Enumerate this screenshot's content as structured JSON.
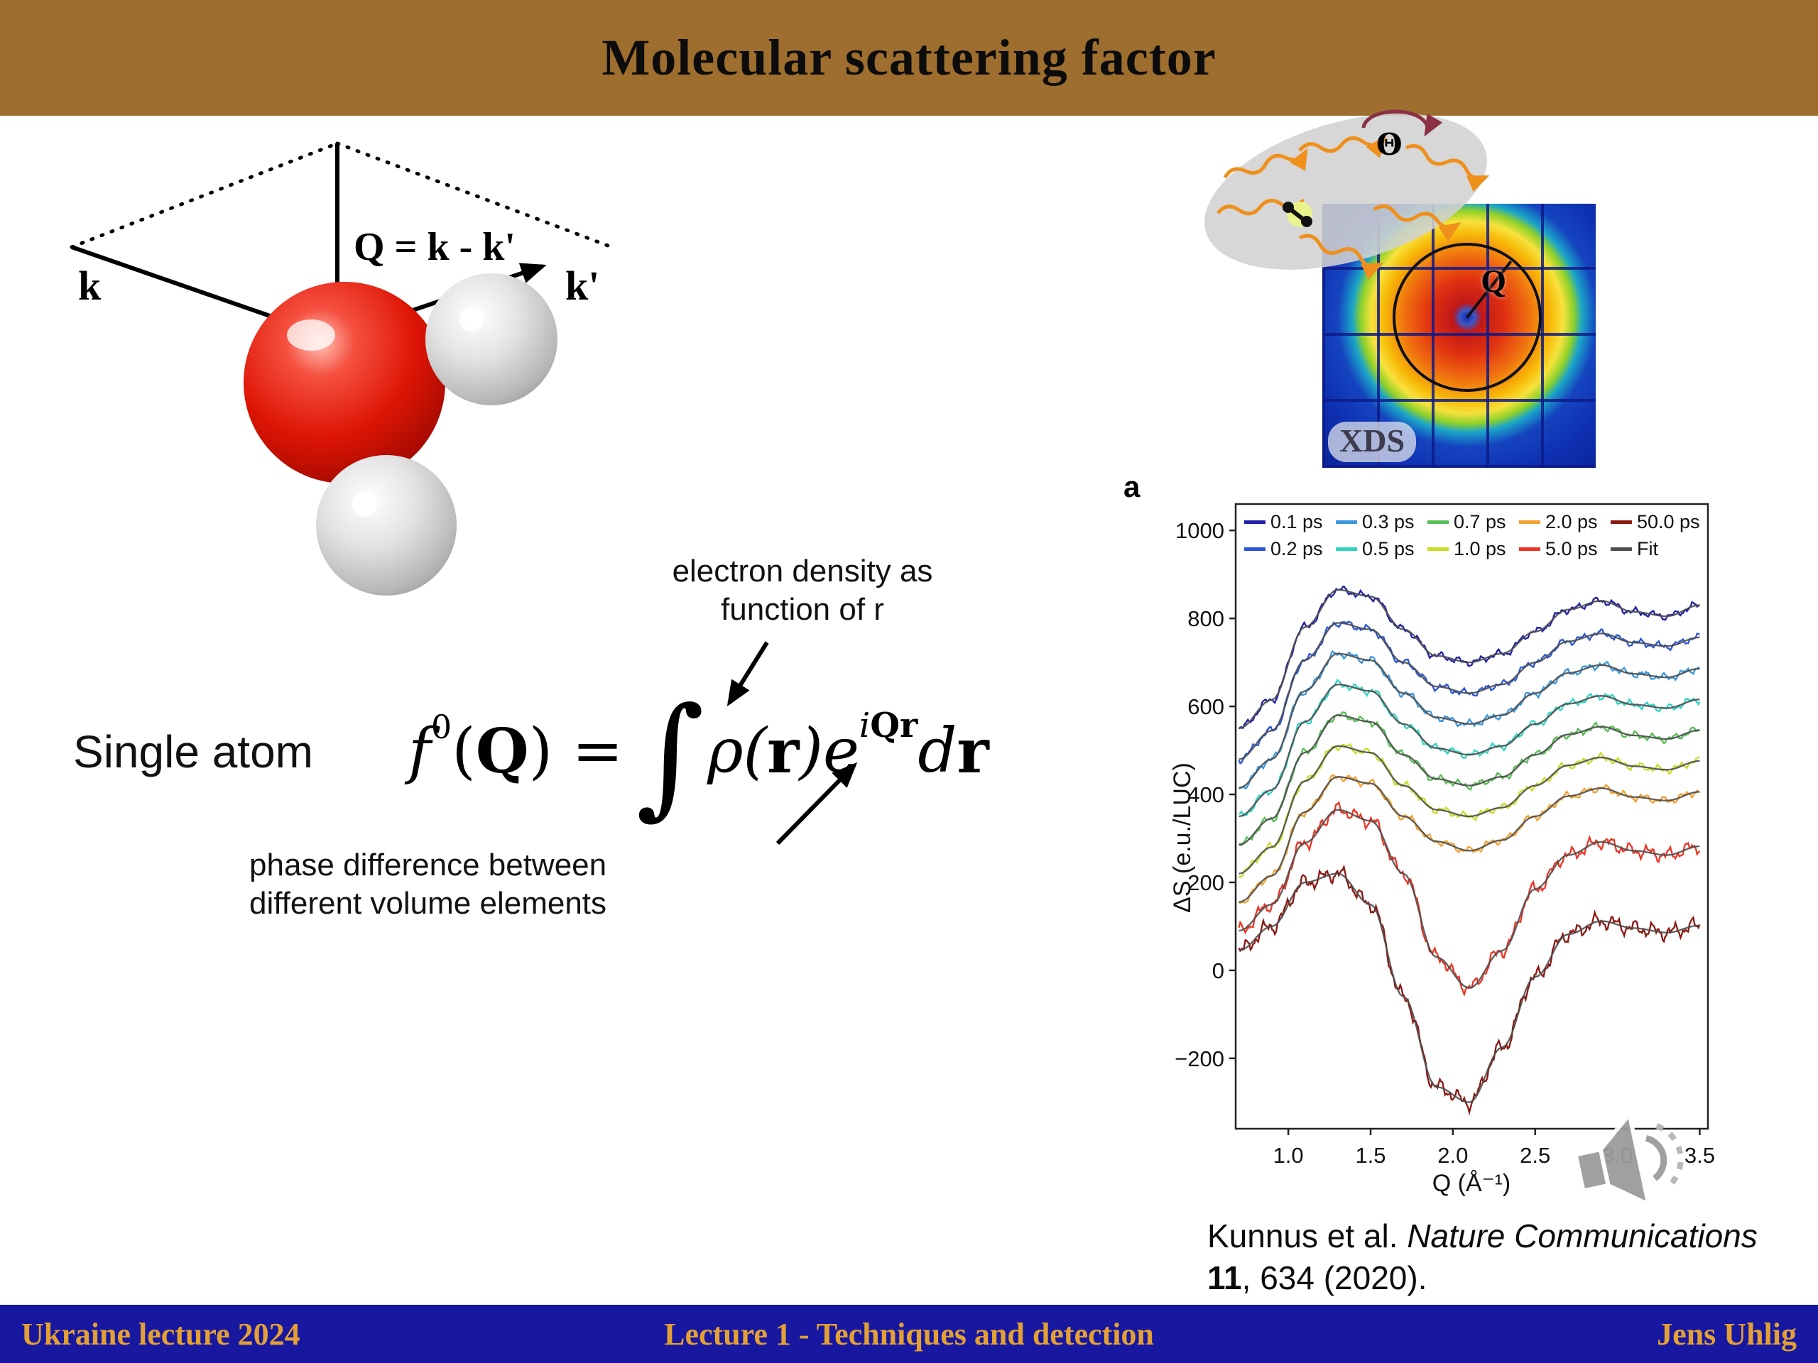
{
  "header": {
    "title": "Molecular scattering factor"
  },
  "footer": {
    "left": "Ukraine lecture 2024",
    "center": "Lecture 1 - Techniques and detection",
    "right": "Jens Uhlig"
  },
  "vector_diagram": {
    "k_label": "k",
    "k_prime_label": "k'",
    "q_equation": "Q = k - k'"
  },
  "formula": {
    "lead": "Single atom",
    "parts": {
      "f": "f",
      "zero": "0",
      "open": "(",
      "Q": "Q",
      "close_eq": ") =",
      "integral": "∫",
      "rho": "ρ(",
      "r": "r",
      "close_e": ")e",
      "exp_i": "i",
      "exp_Qr": "Qr",
      "d": "d",
      "r2": "r"
    },
    "annotation_top_line1": "electron density as",
    "annotation_top_line2": "function of r",
    "annotation_bottom_line1": "phase difference between",
    "annotation_bottom_line2": "different volume elements"
  },
  "scattering_illustration": {
    "theta": "Θ",
    "detector_label": "XDS",
    "q_label": "Q"
  },
  "citation": {
    "authors": "Kunnus et al. ",
    "journal": "Nature Communications",
    "volume": "11",
    "rest": ", 634 (2020)."
  },
  "chart_data": {
    "type": "line",
    "panel_label": "a",
    "xlabel": "Q (Å⁻¹)",
    "ylabel": "ΔS (e.u./LUC)",
    "xlim": [
      0.68,
      3.55
    ],
    "ylim": [
      -360,
      1060
    ],
    "xticks": [
      1.0,
      1.5,
      2.0,
      2.5,
      3.0,
      3.5
    ],
    "yticks": [
      -200,
      0,
      200,
      400,
      600,
      800,
      1000
    ],
    "legend_order": [
      "0.1 ps",
      "0.3 ps",
      "0.7 ps",
      "2.0 ps",
      "50.0 ps",
      "0.2 ps",
      "0.5 ps",
      "1.0 ps",
      "5.0 ps",
      "Fit"
    ],
    "x": [
      0.7,
      0.9,
      1.1,
      1.3,
      1.5,
      1.7,
      1.9,
      2.1,
      2.3,
      2.5,
      2.7,
      2.9,
      3.1,
      3.3,
      3.5
    ],
    "series": [
      {
        "name": "0.1 ps",
        "color": "#2020a8",
        "values": [
          550,
          615,
          780,
          865,
          850,
          775,
          715,
          700,
          720,
          770,
          820,
          840,
          815,
          805,
          830
        ]
      },
      {
        "name": "0.2 ps",
        "color": "#2b55d8",
        "values": [
          480,
          545,
          705,
          790,
          775,
          700,
          645,
          630,
          650,
          700,
          748,
          766,
          745,
          737,
          757
        ]
      },
      {
        "name": "0.3 ps",
        "color": "#3b97dd",
        "values": [
          415,
          480,
          635,
          720,
          705,
          630,
          575,
          560,
          580,
          630,
          676,
          694,
          674,
          666,
          686
        ]
      },
      {
        "name": "0.5 ps",
        "color": "#2fd4c4",
        "values": [
          350,
          410,
          565,
          650,
          635,
          560,
          505,
          490,
          510,
          560,
          606,
          624,
          604,
          596,
          616
        ]
      },
      {
        "name": "0.7 ps",
        "color": "#57bd57",
        "values": [
          285,
          345,
          495,
          580,
          565,
          490,
          435,
          420,
          440,
          490,
          536,
          554,
          534,
          526,
          546
        ]
      },
      {
        "name": "1.0 ps",
        "color": "#c9dc28",
        "values": [
          220,
          280,
          430,
          510,
          495,
          420,
          365,
          350,
          370,
          420,
          466,
          484,
          464,
          456,
          476
        ]
      },
      {
        "name": "2.0 ps",
        "color": "#f2a233",
        "values": [
          155,
          215,
          360,
          440,
          425,
          350,
          293,
          272,
          296,
          350,
          396,
          414,
          394,
          386,
          406
        ]
      },
      {
        "name": "5.0 ps",
        "color": "#ea3524",
        "values": [
          90,
          150,
          290,
          365,
          340,
          220,
          30,
          -40,
          45,
          185,
          262,
          292,
          272,
          262,
          282
        ]
      },
      {
        "name": "50.0 ps",
        "color": "#8c1712",
        "values": [
          45,
          100,
          200,
          220,
          150,
          -60,
          -265,
          -300,
          -175,
          -15,
          82,
          112,
          96,
          86,
          102
        ]
      },
      {
        "name": "Fit",
        "color": "#4d4d4d"
      }
    ]
  }
}
